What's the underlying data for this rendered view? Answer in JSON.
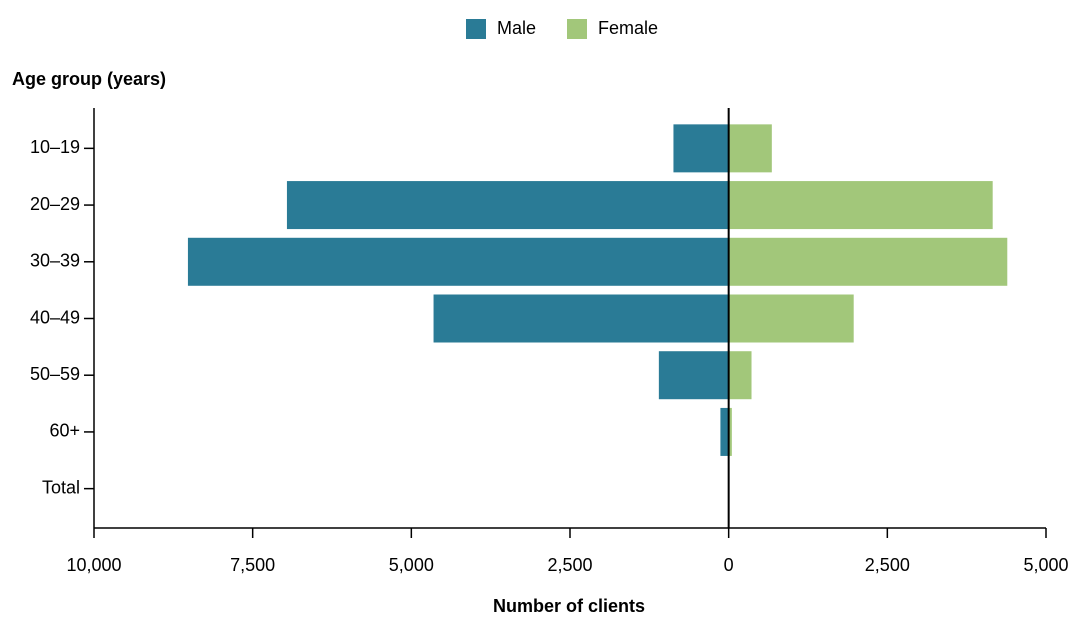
{
  "chart_data": {
    "type": "pyramid",
    "y_axis_label": "Age group (years)",
    "x_axis_label": "Number of clients",
    "categories": [
      "10–19",
      "20–29",
      "30–39",
      "40–49",
      "50–59",
      "60+",
      "Total"
    ],
    "series": [
      {
        "name": "Male",
        "color": "#2a7b96",
        "values": [
          -870,
          -6960,
          -8520,
          -4650,
          -1100,
          -130,
          null
        ]
      },
      {
        "name": "Female",
        "color": "#a2c77a",
        "values": [
          680,
          4160,
          4390,
          1970,
          360,
          50,
          null
        ]
      }
    ],
    "xlim": [
      -10000,
      5000
    ],
    "xticks": [
      {
        "value": -10000,
        "label": "10,000"
      },
      {
        "value": -7500,
        "label": "7,500"
      },
      {
        "value": -5000,
        "label": "5,000"
      },
      {
        "value": -2500,
        "label": "2,500"
      },
      0,
      {
        "value": 2500,
        "label": "2,500"
      },
      {
        "value": 5000,
        "label": "5,000"
      }
    ],
    "legend": "top"
  }
}
